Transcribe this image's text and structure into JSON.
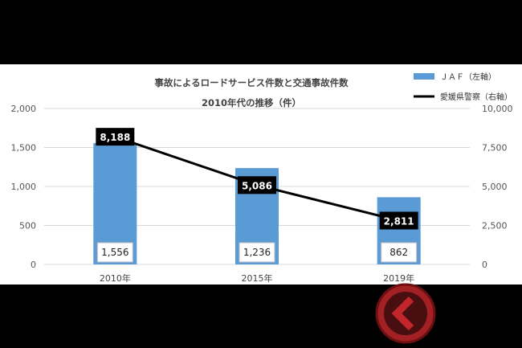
{
  "chart_data": {
    "type": "bar+line",
    "title": "事故によるロードサービス件数と交通事故件数",
    "subtitle": "2010年代の推移（件）",
    "categories": [
      "2010年",
      "2015年",
      "2019年"
    ],
    "series": [
      {
        "name": "ＪＡＦ（左軸）",
        "type": "bar",
        "axis": "left",
        "color": "#5b9bd5",
        "values": [
          1556,
          1236,
          862
        ],
        "labels": [
          "1,556",
          "1,236",
          "862"
        ]
      },
      {
        "name": "愛媛県警察（右軸）",
        "type": "line",
        "axis": "right",
        "color": "#000000",
        "values": [
          8188,
          5086,
          2811
        ],
        "labels": [
          "8,188",
          "5,086",
          "2,811"
        ]
      }
    ],
    "left_axis": {
      "ylim": [
        0,
        2000
      ],
      "ticks": [
        "0",
        "500",
        "1,000",
        "1,500",
        "2,000"
      ]
    },
    "right_axis": {
      "ylim": [
        0,
        10000
      ],
      "ticks": [
        "0",
        "2,500",
        "5,000",
        "7,500",
        "10,000"
      ]
    },
    "grid": true,
    "legend": "top-right"
  },
  "watermark": {
    "icon": "chevron-left-circle-logo"
  }
}
